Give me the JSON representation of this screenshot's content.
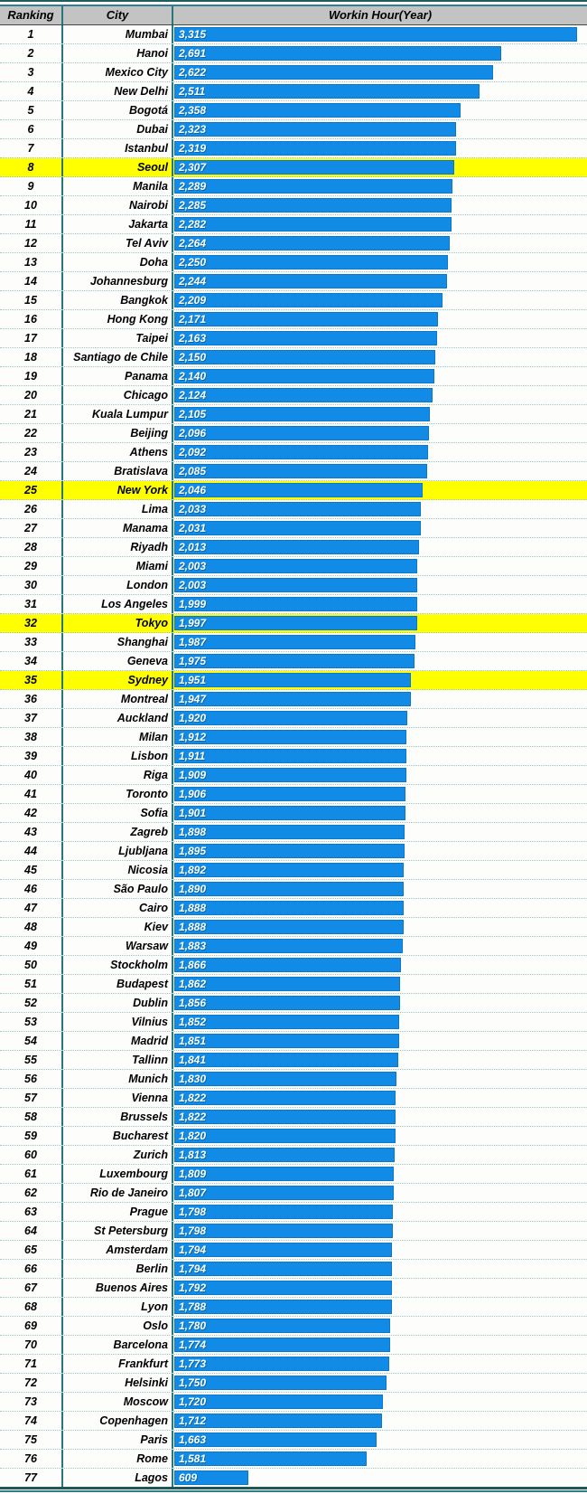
{
  "table": {
    "columns": [
      "Ranking",
      "City",
      "Workin Hour(Year)"
    ]
  },
  "colors": {
    "bar_fill": "#118be6",
    "highlight_row": "#ffff00",
    "header_bg": "#c3c3c3",
    "frame_dark_teal": "#1f5c5f",
    "column_separator": "#2a767e",
    "row_dotted_line": "#95c9cf",
    "value_text": "#ffffff",
    "label_text": "#000000"
  },
  "chart_data": {
    "type": "bar",
    "orientation": "horizontal",
    "title": "Workin Hour(Year) by City",
    "xlabel": "Workin Hour(Year)",
    "ylabel": "City",
    "xlim": [
      0,
      3390
    ],
    "grid": false,
    "legend": false,
    "highlighted_ranks": [
      8,
      25,
      32,
      35
    ],
    "rows": [
      {
        "rank": 1,
        "city": "Mumbai",
        "value": 3315,
        "label": "3,315"
      },
      {
        "rank": 2,
        "city": "Hanoi",
        "value": 2691,
        "label": "2,691"
      },
      {
        "rank": 3,
        "city": "Mexico City",
        "value": 2622,
        "label": "2,622"
      },
      {
        "rank": 4,
        "city": "New Delhi",
        "value": 2511,
        "label": "2,511"
      },
      {
        "rank": 5,
        "city": "Bogotá",
        "value": 2358,
        "label": "2,358"
      },
      {
        "rank": 6,
        "city": "Dubai",
        "value": 2323,
        "label": "2,323"
      },
      {
        "rank": 7,
        "city": "Istanbul",
        "value": 2319,
        "label": "2,319"
      },
      {
        "rank": 8,
        "city": "Seoul",
        "value": 2307,
        "label": "2,307"
      },
      {
        "rank": 9,
        "city": "Manila",
        "value": 2289,
        "label": "2,289"
      },
      {
        "rank": 10,
        "city": "Nairobi",
        "value": 2285,
        "label": "2,285"
      },
      {
        "rank": 11,
        "city": "Jakarta",
        "value": 2282,
        "label": "2,282"
      },
      {
        "rank": 12,
        "city": "Tel Aviv",
        "value": 2264,
        "label": "2,264"
      },
      {
        "rank": 13,
        "city": "Doha",
        "value": 2250,
        "label": "2,250"
      },
      {
        "rank": 14,
        "city": "Johannesburg",
        "value": 2244,
        "label": "2,244"
      },
      {
        "rank": 15,
        "city": "Bangkok",
        "value": 2209,
        "label": "2,209"
      },
      {
        "rank": 16,
        "city": "Hong Kong",
        "value": 2171,
        "label": "2,171"
      },
      {
        "rank": 17,
        "city": "Taipei",
        "value": 2163,
        "label": "2,163"
      },
      {
        "rank": 18,
        "city": "Santiago de Chile",
        "value": 2150,
        "label": "2,150"
      },
      {
        "rank": 19,
        "city": "Panama",
        "value": 2140,
        "label": "2,140"
      },
      {
        "rank": 20,
        "city": "Chicago",
        "value": 2124,
        "label": "2,124"
      },
      {
        "rank": 21,
        "city": "Kuala Lumpur",
        "value": 2105,
        "label": "2,105"
      },
      {
        "rank": 22,
        "city": "Beijing",
        "value": 2096,
        "label": "2,096"
      },
      {
        "rank": 23,
        "city": "Athens",
        "value": 2092,
        "label": "2,092"
      },
      {
        "rank": 24,
        "city": "Bratislava",
        "value": 2085,
        "label": "2,085"
      },
      {
        "rank": 25,
        "city": "New York",
        "value": 2046,
        "label": "2,046"
      },
      {
        "rank": 26,
        "city": "Lima",
        "value": 2033,
        "label": "2,033"
      },
      {
        "rank": 27,
        "city": "Manama",
        "value": 2031,
        "label": "2,031"
      },
      {
        "rank": 28,
        "city": "Riyadh",
        "value": 2013,
        "label": "2,013"
      },
      {
        "rank": 29,
        "city": "Miami",
        "value": 2003,
        "label": "2,003"
      },
      {
        "rank": 30,
        "city": "London",
        "value": 2003,
        "label": "2,003"
      },
      {
        "rank": 31,
        "city": "Los Angeles",
        "value": 1999,
        "label": "1,999"
      },
      {
        "rank": 32,
        "city": "Tokyo",
        "value": 1997,
        "label": "1,997"
      },
      {
        "rank": 33,
        "city": "Shanghai",
        "value": 1987,
        "label": "1,987"
      },
      {
        "rank": 34,
        "city": "Geneva",
        "value": 1975,
        "label": "1,975"
      },
      {
        "rank": 35,
        "city": "Sydney",
        "value": 1951,
        "label": "1,951"
      },
      {
        "rank": 36,
        "city": "Montreal",
        "value": 1947,
        "label": "1,947"
      },
      {
        "rank": 37,
        "city": "Auckland",
        "value": 1920,
        "label": "1,920"
      },
      {
        "rank": 38,
        "city": "Milan",
        "value": 1912,
        "label": "1,912"
      },
      {
        "rank": 39,
        "city": "Lisbon",
        "value": 1911,
        "label": "1,911"
      },
      {
        "rank": 40,
        "city": "Riga",
        "value": 1909,
        "label": "1,909"
      },
      {
        "rank": 41,
        "city": "Toronto",
        "value": 1906,
        "label": "1,906"
      },
      {
        "rank": 42,
        "city": "Sofia",
        "value": 1901,
        "label": "1,901"
      },
      {
        "rank": 43,
        "city": "Zagreb",
        "value": 1898,
        "label": "1,898"
      },
      {
        "rank": 44,
        "city": "Ljubljana",
        "value": 1895,
        "label": "1,895"
      },
      {
        "rank": 45,
        "city": "Nicosia",
        "value": 1892,
        "label": "1,892"
      },
      {
        "rank": 46,
        "city": "São Paulo",
        "value": 1890,
        "label": "1,890"
      },
      {
        "rank": 47,
        "city": "Cairo",
        "value": 1888,
        "label": "1,888"
      },
      {
        "rank": 48,
        "city": "Kiev",
        "value": 1888,
        "label": "1,888"
      },
      {
        "rank": 49,
        "city": "Warsaw",
        "value": 1883,
        "label": "1,883"
      },
      {
        "rank": 50,
        "city": "Stockholm",
        "value": 1866,
        "label": "1,866"
      },
      {
        "rank": 51,
        "city": "Budapest",
        "value": 1862,
        "label": "1,862"
      },
      {
        "rank": 52,
        "city": "Dublin",
        "value": 1856,
        "label": "1,856"
      },
      {
        "rank": 53,
        "city": "Vilnius",
        "value": 1852,
        "label": "1,852"
      },
      {
        "rank": 54,
        "city": "Madrid",
        "value": 1851,
        "label": "1,851"
      },
      {
        "rank": 55,
        "city": "Tallinn",
        "value": 1841,
        "label": "1,841"
      },
      {
        "rank": 56,
        "city": "Munich",
        "value": 1830,
        "label": "1,830"
      },
      {
        "rank": 57,
        "city": "Vienna",
        "value": 1822,
        "label": "1,822"
      },
      {
        "rank": 58,
        "city": "Brussels",
        "value": 1822,
        "label": "1,822"
      },
      {
        "rank": 59,
        "city": "Bucharest",
        "value": 1820,
        "label": "1,820"
      },
      {
        "rank": 60,
        "city": "Zurich",
        "value": 1813,
        "label": "1,813"
      },
      {
        "rank": 61,
        "city": "Luxembourg",
        "value": 1809,
        "label": "1,809"
      },
      {
        "rank": 62,
        "city": "Rio de Janeiro",
        "value": 1807,
        "label": "1,807"
      },
      {
        "rank": 63,
        "city": "Prague",
        "value": 1798,
        "label": "1,798"
      },
      {
        "rank": 64,
        "city": "St Petersburg",
        "value": 1798,
        "label": "1,798"
      },
      {
        "rank": 65,
        "city": "Amsterdam",
        "value": 1794,
        "label": "1,794"
      },
      {
        "rank": 66,
        "city": "Berlin",
        "value": 1794,
        "label": "1,794"
      },
      {
        "rank": 67,
        "city": "Buenos Aires",
        "value": 1792,
        "label": "1,792"
      },
      {
        "rank": 68,
        "city": "Lyon",
        "value": 1788,
        "label": "1,788"
      },
      {
        "rank": 69,
        "city": "Oslo",
        "value": 1780,
        "label": "1,780"
      },
      {
        "rank": 70,
        "city": "Barcelona",
        "value": 1774,
        "label": "1,774"
      },
      {
        "rank": 71,
        "city": "Frankfurt",
        "value": 1773,
        "label": "1,773"
      },
      {
        "rank": 72,
        "city": "Helsinki",
        "value": 1750,
        "label": "1,750"
      },
      {
        "rank": 73,
        "city": "Moscow",
        "value": 1720,
        "label": "1,720"
      },
      {
        "rank": 74,
        "city": "Copenhagen",
        "value": 1712,
        "label": "1,712"
      },
      {
        "rank": 75,
        "city": "Paris",
        "value": 1663,
        "label": "1,663"
      },
      {
        "rank": 76,
        "city": "Rome",
        "value": 1581,
        "label": "1,581"
      },
      {
        "rank": 77,
        "city": "Lagos",
        "value": 609,
        "label": "609"
      }
    ]
  }
}
